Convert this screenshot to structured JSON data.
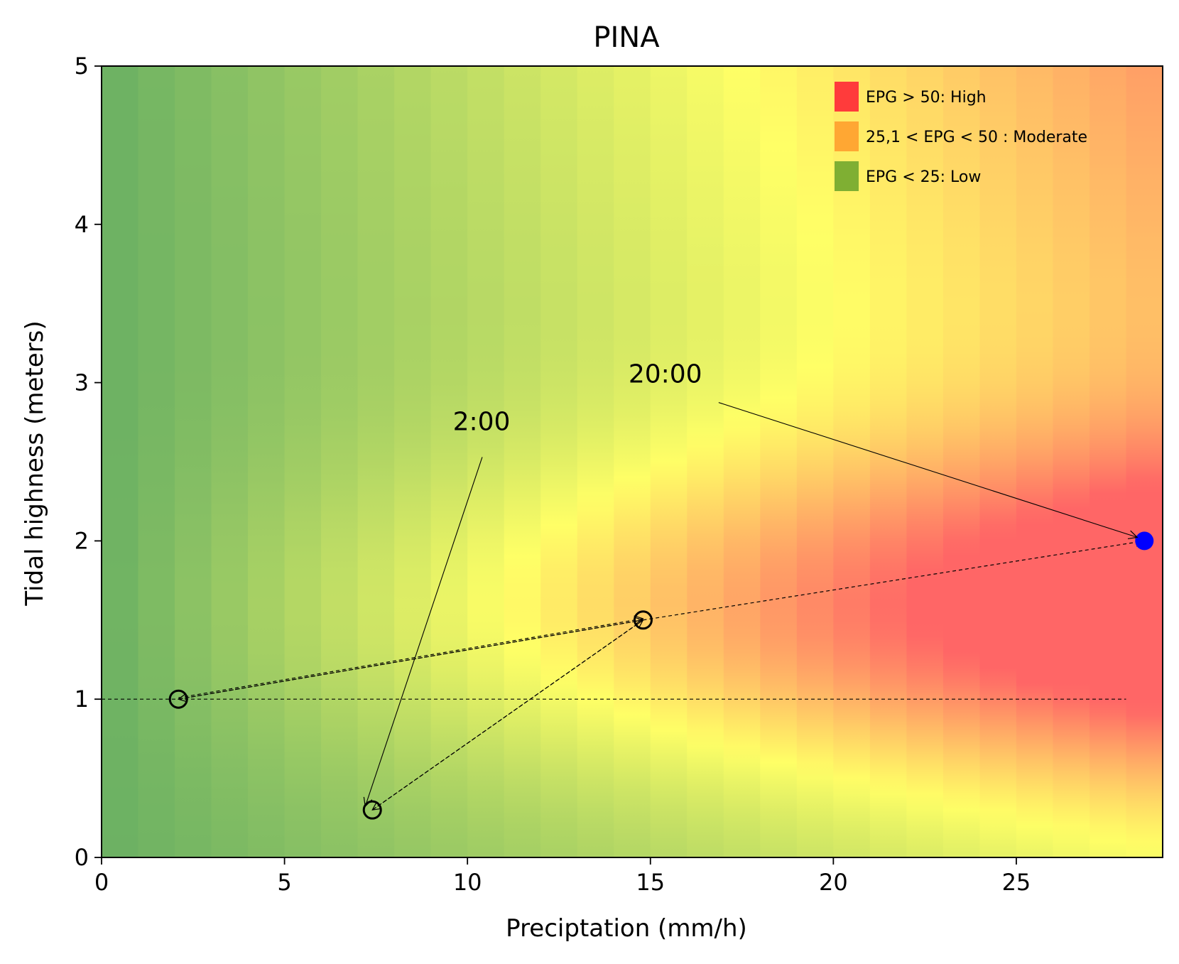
{
  "chart_data": {
    "type": "heatmap",
    "title": "PINA",
    "xlabel": "Preciptation (mm/h)",
    "ylabel": "Tidal highness (meters)",
    "xlim": [
      0,
      29
    ],
    "ylim": [
      0,
      5
    ],
    "xticks": [
      0,
      5,
      10,
      15,
      20,
      25
    ],
    "yticks": [
      0,
      1,
      2,
      3,
      4,
      5
    ],
    "grid": false,
    "legend_position": "top-right",
    "legend": [
      {
        "label": "EPG > 50: High",
        "color": "#ff3b3b"
      },
      {
        "label": "25,1 < EPG < 50 : Moderate",
        "color": "#ffa733"
      },
      {
        "label": "EPG < 25: Low",
        "color": "#7faf33"
      }
    ],
    "heatmap_colors": {
      "low": "#6ab063",
      "mid": "#ffff66",
      "high": "#ff6666"
    },
    "reference_line": {
      "y": 1,
      "x_range": [
        0,
        28
      ],
      "style": "dashed"
    },
    "path": {
      "points": [
        {
          "x": 2.1,
          "y": 1.0
        },
        {
          "x": 14.8,
          "y": 1.5
        },
        {
          "x": 2.1,
          "y": 1.0
        },
        {
          "x": 14.8,
          "y": 1.5
        },
        {
          "x": 7.4,
          "y": 0.3
        },
        {
          "x": 14.8,
          "y": 1.5
        },
        {
          "x": 28.5,
          "y": 2.0
        }
      ],
      "open_markers": [
        {
          "x": 2.1,
          "y": 1.0
        },
        {
          "x": 14.8,
          "y": 1.5
        },
        {
          "x": 7.4,
          "y": 0.3
        }
      ],
      "current_point": {
        "x": 28.5,
        "y": 2.0,
        "color": "#0000ff"
      }
    },
    "annotations": [
      {
        "text": "2:00",
        "x": 9.6,
        "y": 2.7,
        "target": {
          "x": 7.4,
          "y": 0.3
        }
      },
      {
        "text": "20:00",
        "x": 14.4,
        "y": 3.0,
        "target": {
          "x": 28.5,
          "y": 2.0
        }
      }
    ]
  }
}
